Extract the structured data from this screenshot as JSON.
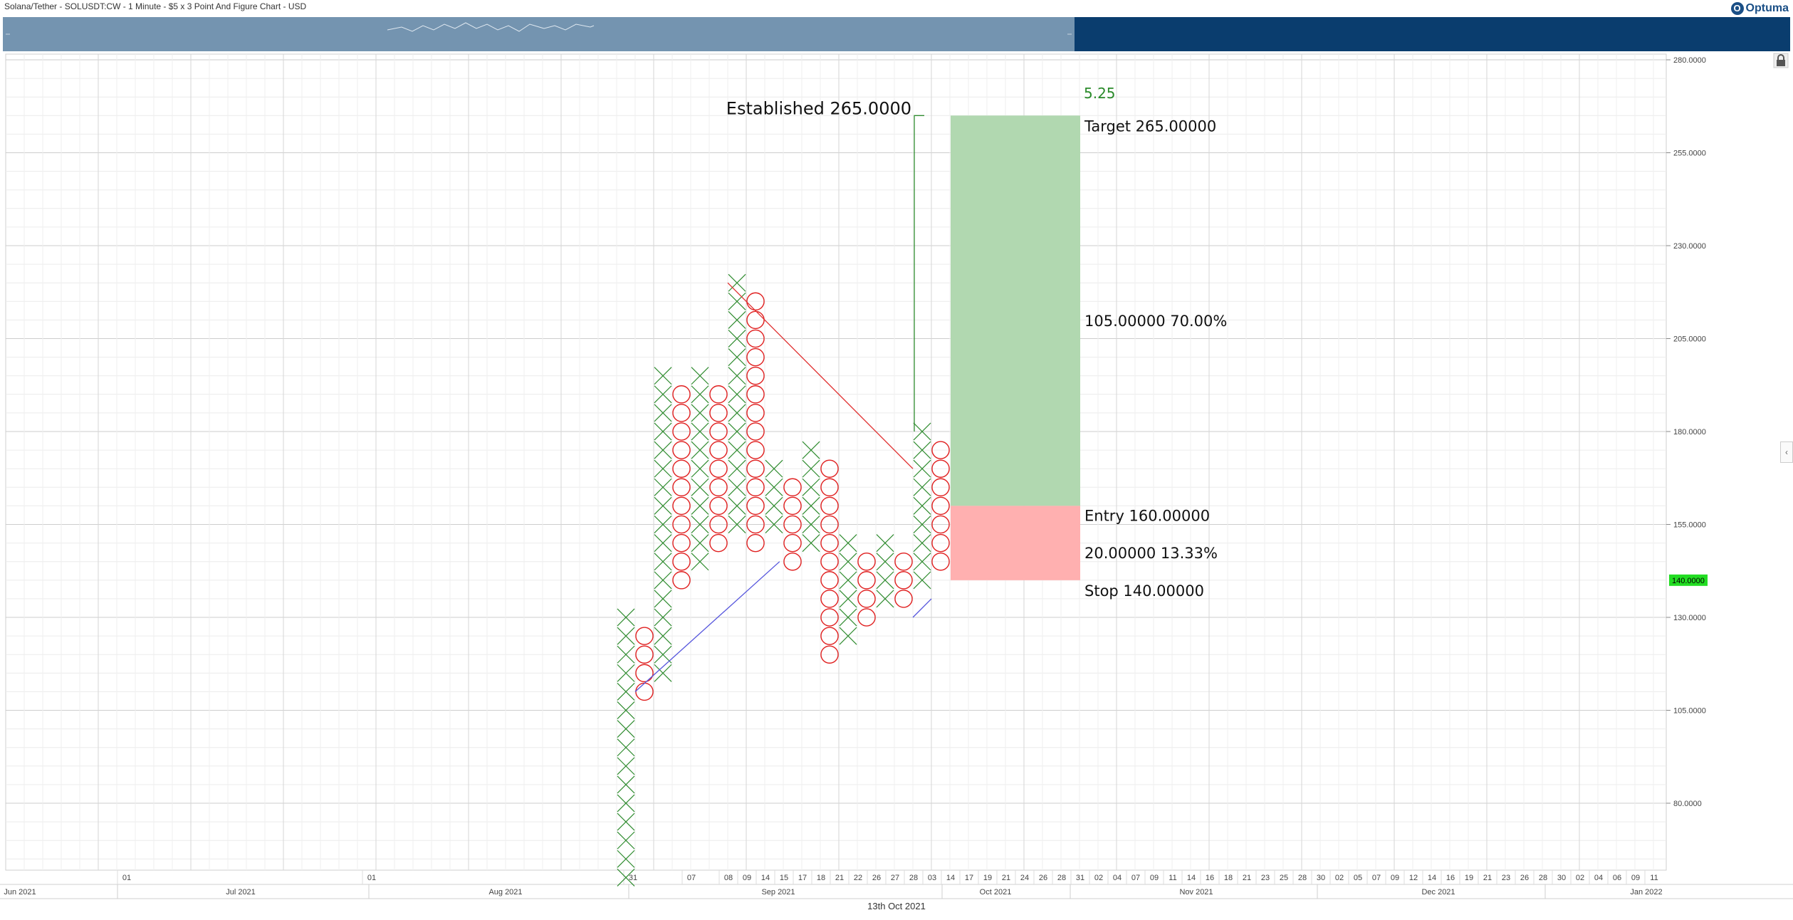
{
  "header": {
    "title": "Solana/Tether - SOLUSDT:CW - 1 Minute - $5 x 3 Point And Figure Chart - USD",
    "brand": "Optuma",
    "brand_icon": "optuma-logo-icon"
  },
  "footer": {
    "date": "13th Oct 2021"
  },
  "colors": {
    "x_mark": "#2e8b2e",
    "o_mark": "#e02020",
    "target_zone": "#b1d8b0",
    "stop_zone": "#ffb0b0",
    "price_tag": "#22dd22",
    "navigator": "#0a3d6e",
    "navigator_window": "#7494b0"
  },
  "chart_data": {
    "type": "point_and_figure",
    "box_size": 5,
    "reversal": 3,
    "ylim": [
      55,
      280
    ],
    "y_ticks": [
      "280.0000",
      "255.0000",
      "230.0000",
      "205.0000",
      "180.0000",
      "155.0000",
      "130.0000",
      "105.0000",
      "80.0000"
    ],
    "y_tick_values": [
      280,
      255,
      230,
      205,
      180,
      155,
      130,
      105,
      80
    ],
    "current_price": {
      "value": 140,
      "label": "140.0000"
    },
    "columns": [
      {
        "type": "X",
        "low": 60,
        "high": 130
      },
      {
        "type": "O",
        "low": 110,
        "high": 125
      },
      {
        "type": "X",
        "low": 115,
        "high": 195
      },
      {
        "type": "O",
        "low": 140,
        "high": 190
      },
      {
        "type": "X",
        "low": 145,
        "high": 195
      },
      {
        "type": "O",
        "low": 150,
        "high": 190
      },
      {
        "type": "X",
        "low": 155,
        "high": 220
      },
      {
        "type": "O",
        "low": 150,
        "high": 215
      },
      {
        "type": "X",
        "low": 155,
        "high": 170
      },
      {
        "type": "O",
        "low": 145,
        "high": 165
      },
      {
        "type": "X",
        "low": 150,
        "high": 175
      },
      {
        "type": "O",
        "low": 120,
        "high": 170
      },
      {
        "type": "X",
        "low": 125,
        "high": 150
      },
      {
        "type": "O",
        "low": 130,
        "high": 145
      },
      {
        "type": "X",
        "low": 135,
        "high": 150
      },
      {
        "type": "O",
        "low": 135,
        "high": 145
      },
      {
        "type": "X",
        "low": 140,
        "high": 180
      },
      {
        "type": "O",
        "low": 145,
        "high": 175
      }
    ],
    "trendlines": [
      {
        "name": "resistance",
        "color": "#e03030",
        "from": {
          "col": 5.5,
          "price": 220
        },
        "to": {
          "col": 15.5,
          "price": 170
        }
      },
      {
        "name": "support",
        "color": "#5555dd",
        "from": {
          "col": 0.5,
          "price": 110
        },
        "to": {
          "col": 8.3,
          "price": 145
        }
      },
      {
        "name": "support-2",
        "color": "#5555dd",
        "from": {
          "col": 15.5,
          "price": 130
        },
        "to": {
          "col": 16.5,
          "price": 135
        }
      }
    ],
    "projection": {
      "label": "Established 265.0000",
      "value": 265,
      "from_price": 180,
      "count_label": "5.25"
    },
    "trade": {
      "target_label": "Target",
      "target_value": "265.00000",
      "target_price": 265,
      "reward_label": "105.00000   70.00%",
      "entry_label": "Entry",
      "entry_value": "160.00000",
      "entry_price": 160,
      "risk_label": "20.00000   13.33%",
      "stop_label": "Stop",
      "stop_value": "140.00000",
      "stop_price": 140
    },
    "x_axis": {
      "day_ticks": [
        "01",
        "01",
        "31",
        "07",
        "08",
        "09",
        "14",
        "15",
        "17",
        "18",
        "21",
        "22",
        "26",
        "27",
        "28",
        "03",
        "14",
        "17",
        "19",
        "21",
        "24",
        "26",
        "28",
        "31",
        "02",
        "04",
        "07",
        "09",
        "11",
        "14",
        "16",
        "18",
        "21",
        "23",
        "25",
        "28",
        "30",
        "02",
        "05",
        "07",
        "09",
        "12",
        "14",
        "16",
        "19",
        "21",
        "23",
        "26",
        "28",
        "30",
        "02",
        "04",
        "06",
        "09",
        "11"
      ],
      "month_labels": [
        "Jun 2021",
        "Jul 2021",
        "Aug 2021",
        "Sep 2021",
        "Oct 2021",
        "Nov 2021",
        "Dec 2021",
        "Jan 2022"
      ]
    }
  }
}
